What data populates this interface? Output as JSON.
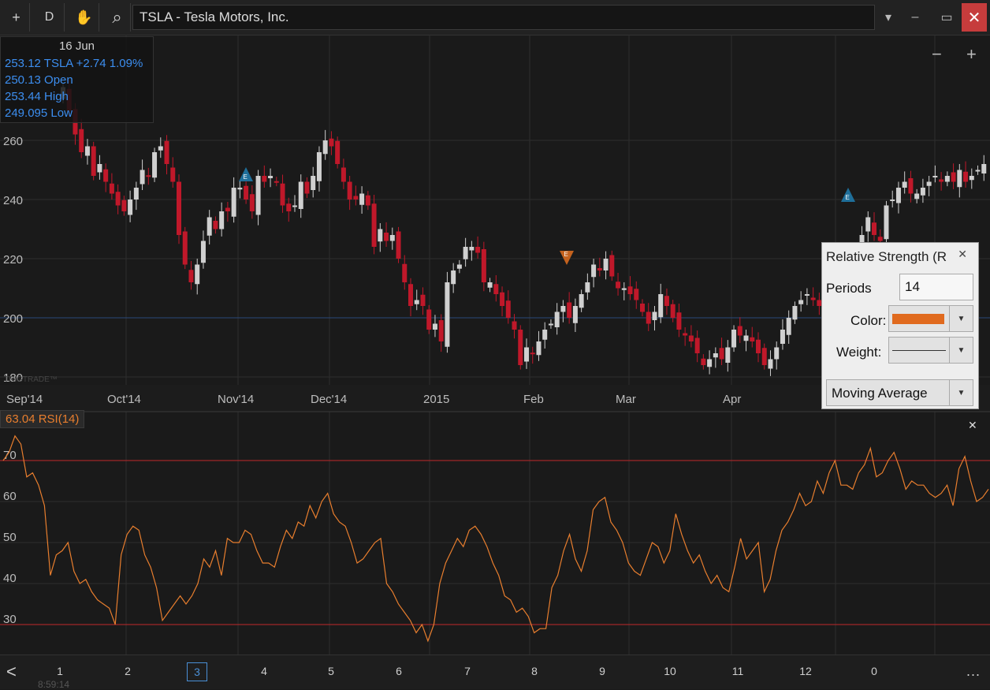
{
  "toolbar": {
    "add_label": "+",
    "period_label": "D",
    "hand_label": "✋",
    "search_label": "⌕",
    "symbol_value": "TSLA - Tesla Motors, Inc.",
    "dropdown_label": "▾",
    "minimize_label": "–",
    "maximize_label": "▭",
    "close_label": "✕"
  },
  "zoom": {
    "out_label": "−",
    "in_label": "+"
  },
  "info_box": {
    "date": "16 Jun",
    "line1": "253.12 TSLA +2.74 1.09%",
    "line2": "250.13 Open",
    "line3": "253.44 High",
    "line4": "249.095 Low"
  },
  "price_axis": {
    "labels": [
      "260",
      "240",
      "220",
      "200",
      "180"
    ]
  },
  "watermark": "TRIGTRADE™",
  "time_axis": {
    "labels": [
      "Sep'14",
      "Oct'14",
      "Nov'14",
      "Dec'14",
      "2015",
      "Feb",
      "Mar",
      "Apr"
    ]
  },
  "earnings_marker": "E",
  "rsi": {
    "label": "63.04 RSI(14)",
    "close_label": "✕",
    "levels": [
      "70",
      "60",
      "50",
      "40",
      "30"
    ]
  },
  "dialog": {
    "title": "Relative Strength (R",
    "close_label": "✕",
    "periods_label": "Periods",
    "periods_value": "14",
    "color_label": "Color:",
    "weight_label": "Weight:",
    "ma_label": "Moving Average",
    "color_value": "#e06a1e"
  },
  "bottom": {
    "back_label": "<",
    "pages": [
      "1",
      "2",
      "3",
      "4",
      "5",
      "6",
      "7",
      "8",
      "9",
      "10",
      "11",
      "12",
      "0"
    ],
    "active_page": "3",
    "more_label": "...",
    "clock": "8:59:14"
  },
  "colors": {
    "up": "#d0d0d0",
    "down": "#c0182a",
    "rsi": "#e87e2e",
    "level": "#c0282a",
    "accent": "#3c8ef0"
  },
  "chart_data": [
    {
      "type": "candlestick",
      "title": "TSLA - Tesla Motors, Inc.",
      "ylim": [
        178,
        268
      ],
      "y_ticks": [
        260,
        240,
        220,
        200,
        180
      ],
      "x_labels": [
        "Sep'14",
        "Oct'14",
        "Nov'14",
        "Dec'14",
        "2015",
        "Feb",
        "Mar",
        "Apr"
      ],
      "reference_line": 200,
      "close": [
        278,
        270,
        262,
        256,
        258,
        248,
        252,
        246,
        242,
        238,
        236,
        240,
        244,
        250,
        248,
        256,
        258,
        252,
        246,
        228,
        218,
        212,
        218,
        226,
        234,
        230,
        236,
        236,
        244,
        244,
        240,
        236,
        248,
        246,
        248,
        246,
        238,
        236,
        238,
        246,
        242,
        248,
        256,
        260,
        258,
        252,
        246,
        240,
        240,
        242,
        238,
        224,
        230,
        226,
        228,
        220,
        212,
        204,
        206,
        204,
        196,
        198,
        192,
        212,
        216,
        218,
        224,
        224,
        222,
        212,
        212,
        208,
        204,
        200,
        196,
        184,
        190,
        188,
        192,
        196,
        198,
        202,
        204,
        200,
        204,
        208,
        212,
        218,
        216,
        220,
        214,
        210,
        210,
        208,
        206,
        202,
        198,
        202,
        208,
        204,
        200,
        196,
        194,
        192,
        188,
        184,
        186,
        188,
        186,
        190,
        196,
        194,
        194,
        192,
        188,
        184,
        186,
        190,
        196,
        200,
        204,
        206,
        208,
        206,
        204,
        202,
        202,
        208,
        216,
        218,
        222,
        228,
        234,
        228,
        226,
        238,
        240,
        244,
        246,
        242,
        242,
        244,
        246,
        248,
        246,
        248,
        246,
        250,
        246,
        248,
        250,
        252
      ]
    },
    {
      "type": "line",
      "title": "RSI(14)",
      "ylim": [
        25,
        75
      ],
      "levels": [
        70,
        30
      ],
      "values": [
        70,
        72,
        76,
        74,
        66,
        67,
        64,
        59,
        42,
        47,
        48,
        50,
        43,
        40,
        41,
        38,
        36,
        35,
        34,
        30,
        47,
        52,
        54,
        53,
        47,
        44,
        39,
        31,
        33,
        35,
        37,
        35,
        37,
        40,
        46,
        44,
        48,
        42,
        51,
        50,
        50,
        53,
        52,
        48,
        45,
        45,
        44,
        49,
        53,
        51,
        55,
        54,
        59,
        56,
        60,
        62,
        57,
        55,
        54,
        50,
        45,
        46,
        48,
        50,
        51,
        40,
        38,
        35,
        33,
        31,
        28,
        30,
        26,
        30,
        40,
        45,
        48,
        51,
        49,
        53,
        54,
        52,
        49,
        45,
        42,
        37,
        36,
        33,
        34,
        32,
        28,
        29,
        29,
        39,
        42,
        48,
        52,
        46,
        43,
        48,
        58,
        60,
        61,
        55,
        53,
        50,
        45,
        43,
        42,
        46,
        50,
        49,
        45,
        48,
        57,
        52,
        48,
        45,
        47,
        43,
        40,
        42,
        39,
        38,
        44,
        51,
        46,
        48,
        50,
        38,
        41,
        48,
        53,
        55,
        58,
        62,
        59,
        60,
        65,
        62,
        67,
        70,
        64,
        64,
        63,
        67,
        69,
        73,
        66,
        67,
        70,
        72,
        68,
        63,
        65,
        64,
        64,
        62,
        61,
        62,
        64,
        59,
        68,
        71,
        65,
        60,
        61,
        63
      ]
    }
  ]
}
